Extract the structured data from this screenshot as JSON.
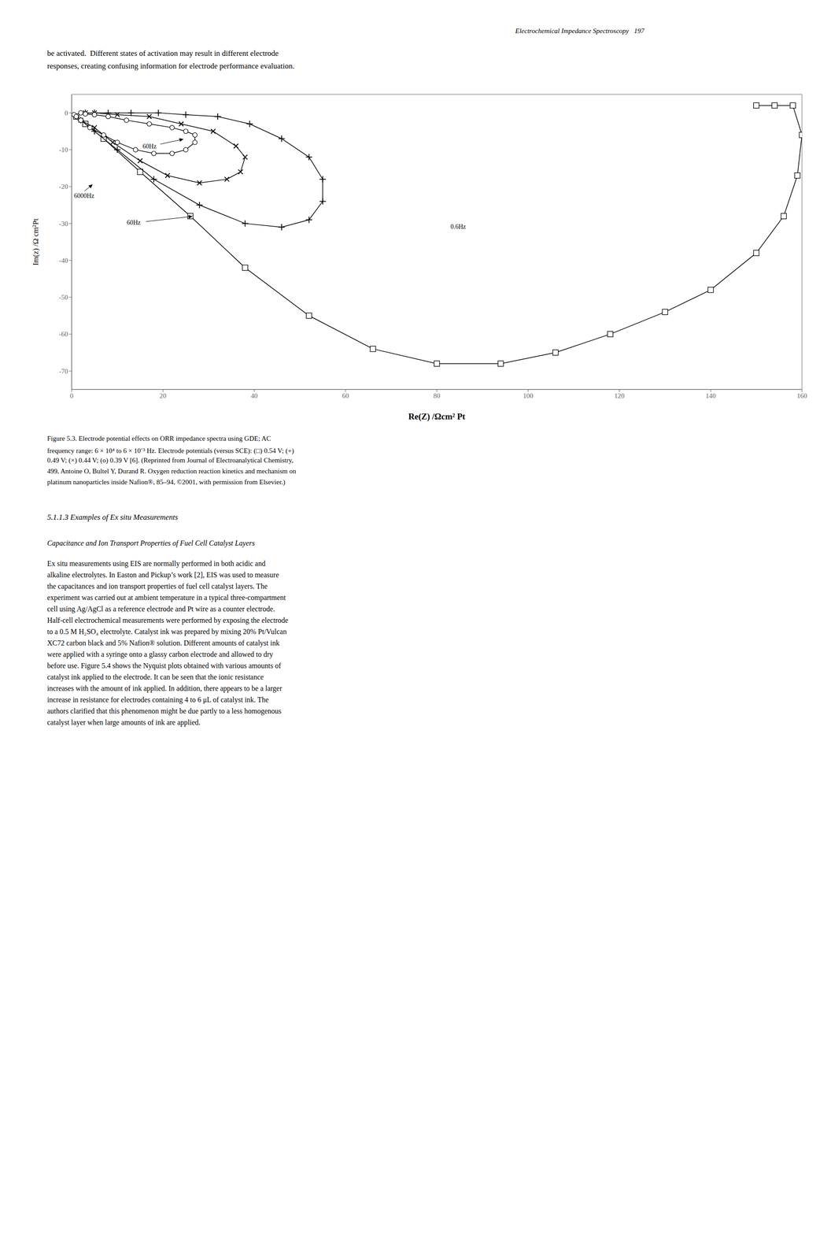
{
  "chart_data": {
    "type": "line",
    "xlabel": "Re(Z) /Ωcm² Pt",
    "ylabel": "Im(z) /Ω cm²Pt",
    "xlim": [
      0,
      160
    ],
    "ylim": [
      -75,
      5
    ],
    "xticks": [
      0,
      20,
      40,
      60,
      80,
      100,
      120,
      140,
      160
    ],
    "yticks": [
      -70,
      -60,
      -50,
      -40,
      -30,
      -20,
      -10,
      0
    ],
    "grid": false,
    "series": [
      {
        "color": "#000000",
        "marker": "square",
        "line_style": "solid",
        "x": [
          1,
          3,
          7,
          15,
          26,
          38,
          52,
          66,
          80,
          94,
          106,
          118,
          130,
          140,
          150,
          156,
          159,
          160,
          158,
          154,
          150
        ],
        "values": [
          -1,
          -3,
          -7,
          -16,
          -28,
          -42,
          -55,
          -64,
          -68,
          -68,
          -65,
          -60,
          -54,
          -48,
          -38,
          -28,
          -17,
          -6,
          2,
          2,
          2
        ]
      },
      {
        "color": "#000000",
        "marker": "plus",
        "line_style": "solid",
        "x": [
          2,
          5,
          10,
          18,
          28,
          38,
          46,
          52,
          55,
          55,
          52,
          46,
          39,
          32,
          25,
          19,
          13,
          8,
          5,
          3
        ],
        "values": [
          -2,
          -5,
          -10,
          -18,
          -25,
          -30,
          -31,
          -29,
          -24,
          -18,
          -12,
          -7,
          -3,
          -1,
          -0.5,
          0,
          0,
          0,
          0,
          0
        ]
      },
      {
        "color": "#000000",
        "marker": "x",
        "line_style": "solid",
        "x": [
          2,
          5,
          9,
          15,
          21,
          28,
          34,
          37,
          38,
          36,
          31,
          24,
          17,
          10,
          5,
          3
        ],
        "values": [
          -2,
          -4,
          -8,
          -13,
          -17,
          -19,
          -18,
          -16,
          -12,
          -9,
          -5,
          -3,
          -1,
          -0.5,
          0,
          0
        ]
      },
      {
        "color": "#000000",
        "marker": "circle",
        "line_style": "solid",
        "x": [
          0.5,
          1,
          2,
          4,
          7,
          10,
          14,
          18,
          22,
          25,
          27,
          27,
          25,
          22,
          17,
          12,
          8,
          5,
          3,
          2
        ],
        "values": [
          -0.5,
          -1,
          -2,
          -4,
          -6,
          -8,
          -10,
          -11,
          -11,
          -10,
          -8,
          -6,
          -5,
          -4,
          -3,
          -2,
          -1,
          -0.5,
          -0.3,
          0
        ]
      }
    ],
    "annotations": [
      {
        "text": "60Hz",
        "x": 27,
        "y": -28
      },
      {
        "text": "6000Hz",
        "x": 5,
        "y": -19
      },
      {
        "text": "60Hz",
        "x": 25,
        "y": -7
      },
      {
        "text": "0.6Hz",
        "x": 83,
        "y": -31
      },
      "Electrochemical Impedance Spectroscopy   197",
      "be activated.  Different states of activation may result in different electrode",
      "responses, creating confusing information for electrode performance evaluation.",
      "Figure 5.3. Electrode potential effects on ORR impedance spectra using GDE; AC",
      "frequency range: 6 × 10⁴ to 6 × 10⁻³ Hz. Electrode potentials (versus SCE): (□) 0.54 V; (+)",
      "0.49 V; (×) 0.44 V; (o) 0.39 V [6]. (Reprinted from Journal of Electroanalytical Chemistry,",
      "499, Antoine O, Bultel Y, Durand R. Oxygen reduction reaction kinetics and mechanism on",
      "platinum nanoparticles inside Nafion®, 85–94, ©2001, with permission from Elsevier.)",
      "5.1.1.3 Examples of Ex situ Measurements",
      "Capacitance and Ion Transport Properties of Fuel Cell Catalyst Layers",
      "Ex situ measurements using EIS are normally performed in both acidic and",
      "alkaline electrolytes. In Easton and Pickup’s work [2], EIS was used to measure",
      "the capacitances and ion transport properties of fuel cell catalyst layers. The",
      "experiment was carried out at ambient temperature in a typical three-compartment",
      "cell using Ag/AgCl as a reference electrode and Pt wire as a counter electrode.",
      "Half-cell electrochemical measurements were performed by exposing the electrode",
      "to a 0.5 M H₂SO₄ electrolyte. Catalyst ink was prepared by mixing 20% Pt/Vulcan",
      "XC72 carbon black and 5% Nafion® solution. Different amounts of catalyst ink",
      "were applied with a syringe onto a glassy carbon electrode and allowed to dry",
      "before use. Figure 5.4 shows the Nyquist plots obtained with various amounts of",
      "catalyst ink applied to the electrode. It can be seen that the ionic resistance",
      "increases with the amount of ink applied. In addition, there appears to be a larger",
      "increase in resistance for electrodes containing 4 to 6 μL of catalyst ink. The",
      "authors clarified that this phenomenon might be due partly to a less homogenous",
      "catalyst layer when large amounts of ink are applied."
    ]
  }
}
